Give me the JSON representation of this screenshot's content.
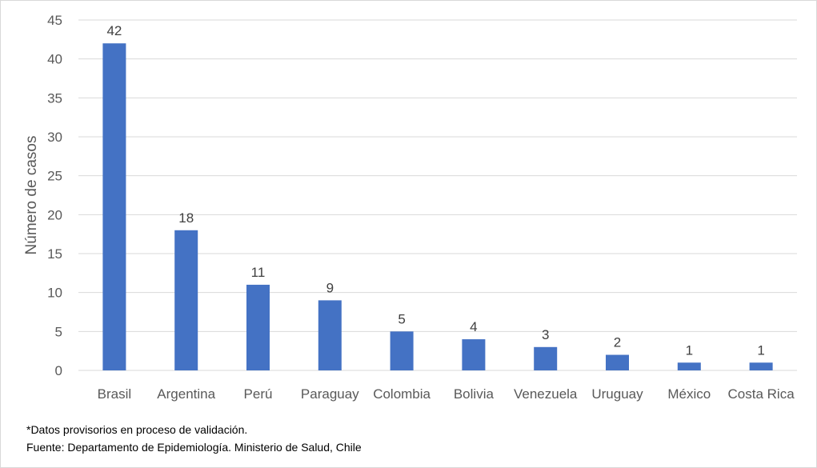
{
  "chart_data": {
    "type": "bar",
    "ylabel": "Número de casos",
    "xlabel": "",
    "ylim": [
      0,
      45
    ],
    "yticks": [
      0,
      5,
      10,
      15,
      20,
      25,
      30,
      35,
      40,
      45
    ],
    "grid": true,
    "categories": [
      "Brasil",
      "Argentina",
      "Perú",
      "Paraguay",
      "Colombia",
      "Bolivia",
      "Venezuela",
      "Uruguay",
      "México",
      "Costa Rica"
    ],
    "values": [
      42,
      18,
      11,
      9,
      5,
      4,
      3,
      2,
      1,
      1
    ],
    "bar_color": "#4472c4",
    "grid_color": "#d9d9d9"
  },
  "footnotes": {
    "note": "*Datos provisorios en proceso de validación.",
    "source": "Fuente: Departamento de Epidemiología. Ministerio de Salud, Chile"
  }
}
